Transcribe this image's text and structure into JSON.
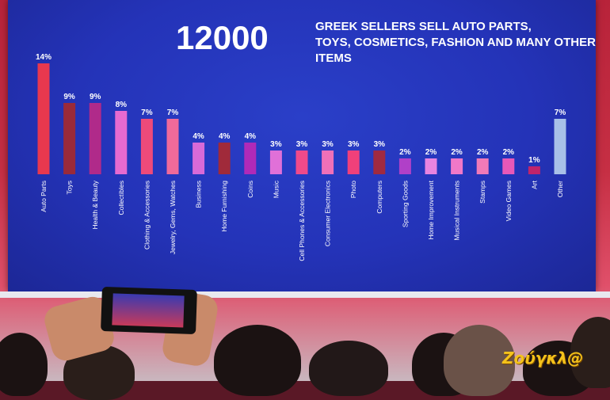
{
  "slide": {
    "big_number": "12000",
    "headline": "GREEK SELLERS SELL AUTO PARTS, TOYS, COSMETICS, FASHION AND MANY OTHER ITEMS"
  },
  "watermark": "Ζούγκλ@",
  "chart_data": {
    "type": "bar",
    "categories": [
      "Auto Parts",
      "Toys",
      "Health & Beauty",
      "Collectibles",
      "Clothing & Accessories",
      "Jewelry, Gems, Watches",
      "Business",
      "Home Furnishing",
      "Coins",
      "Music",
      "Cell Phones & Accessories",
      "Consumer Electronics",
      "Photo",
      "Computers",
      "Sporting Goods",
      "Home Improvement",
      "Musical Instruments",
      "Stamps",
      "Video Games",
      "Art",
      "Other"
    ],
    "values": [
      14,
      9,
      9,
      8,
      7,
      7,
      4,
      4,
      4,
      3,
      3,
      3,
      3,
      3,
      2,
      2,
      2,
      2,
      2,
      1,
      7
    ],
    "labels": [
      "14%",
      "9%",
      "9%",
      "8%",
      "7%",
      "7%",
      "4%",
      "4%",
      "4%",
      "3%",
      "3%",
      "3%",
      "3%",
      "3%",
      "2%",
      "2%",
      "2%",
      "2%",
      "2%",
      "1%",
      "7%"
    ],
    "colors": [
      "#e8384e",
      "#9a2a3a",
      "#b02a8a",
      "#e66ad0",
      "#ee4a7a",
      "#f06a9a",
      "#d86ad8",
      "#a02a3a",
      "#b02ab8",
      "#e070d8",
      "#f04a8a",
      "#f070b8",
      "#f0407a",
      "#a02a40",
      "#b040c8",
      "#e884e0",
      "#f078c8",
      "#f07ab8",
      "#e858b8",
      "#c0246a",
      "#a8c0e8"
    ],
    "ylim": [
      0,
      14
    ]
  }
}
